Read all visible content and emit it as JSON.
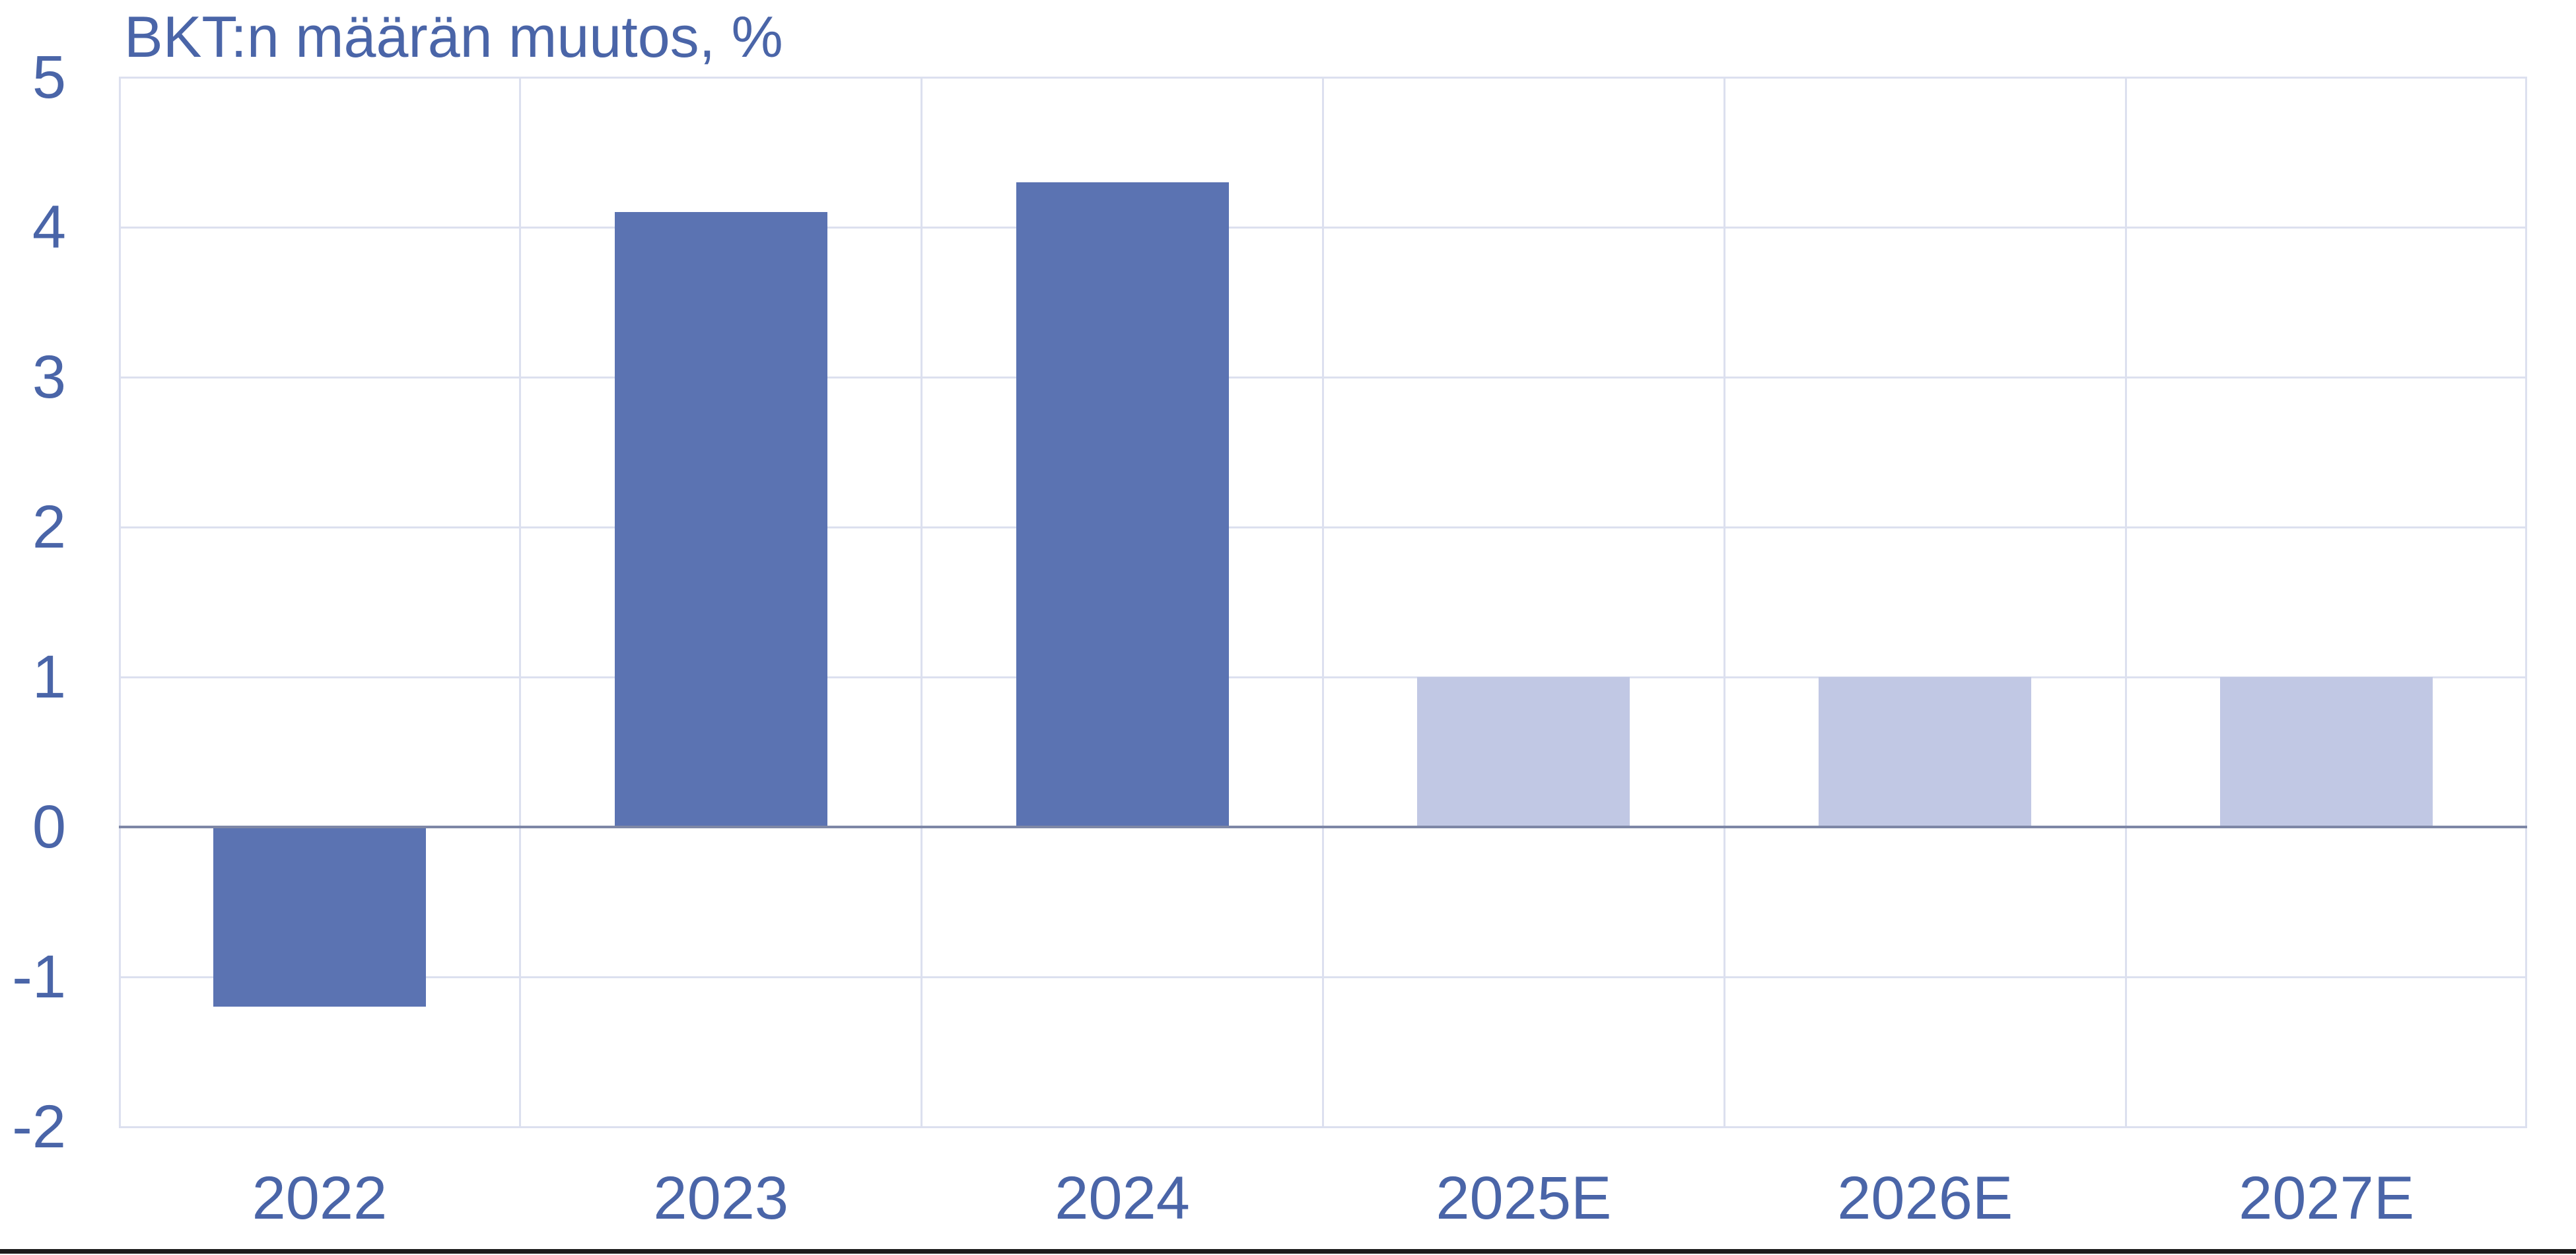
{
  "chart_data": {
    "type": "bar",
    "title": "BKT:n määrän muutos, %",
    "categories": [
      "2022",
      "2023",
      "2024",
      "2025E",
      "2026E",
      "2027E"
    ],
    "values": [
      -1.2,
      4.1,
      4.3,
      1.0,
      1.0,
      1.0
    ],
    "point_styles": [
      "actual",
      "actual",
      "actual",
      "forecast",
      "forecast",
      "forecast"
    ],
    "series_colors": {
      "actual": "#5B73B2",
      "forecast": "#C1C8E4"
    },
    "xlabel": "",
    "ylabel": "",
    "ylim": [
      -2,
      5
    ],
    "yticks": [
      5,
      4,
      3,
      2,
      1,
      0,
      -1,
      -2
    ],
    "grid": true,
    "legend_position": "none",
    "bar_width_fraction": 0.53
  },
  "colors": {
    "title_text": "#4A65A8",
    "axis_tick_text": "#4A65A8",
    "gridline": "#DCE0EF",
    "zero_line": "#7E87A6",
    "bottom_rule": "#1b1b1b",
    "background": "#ffffff"
  }
}
